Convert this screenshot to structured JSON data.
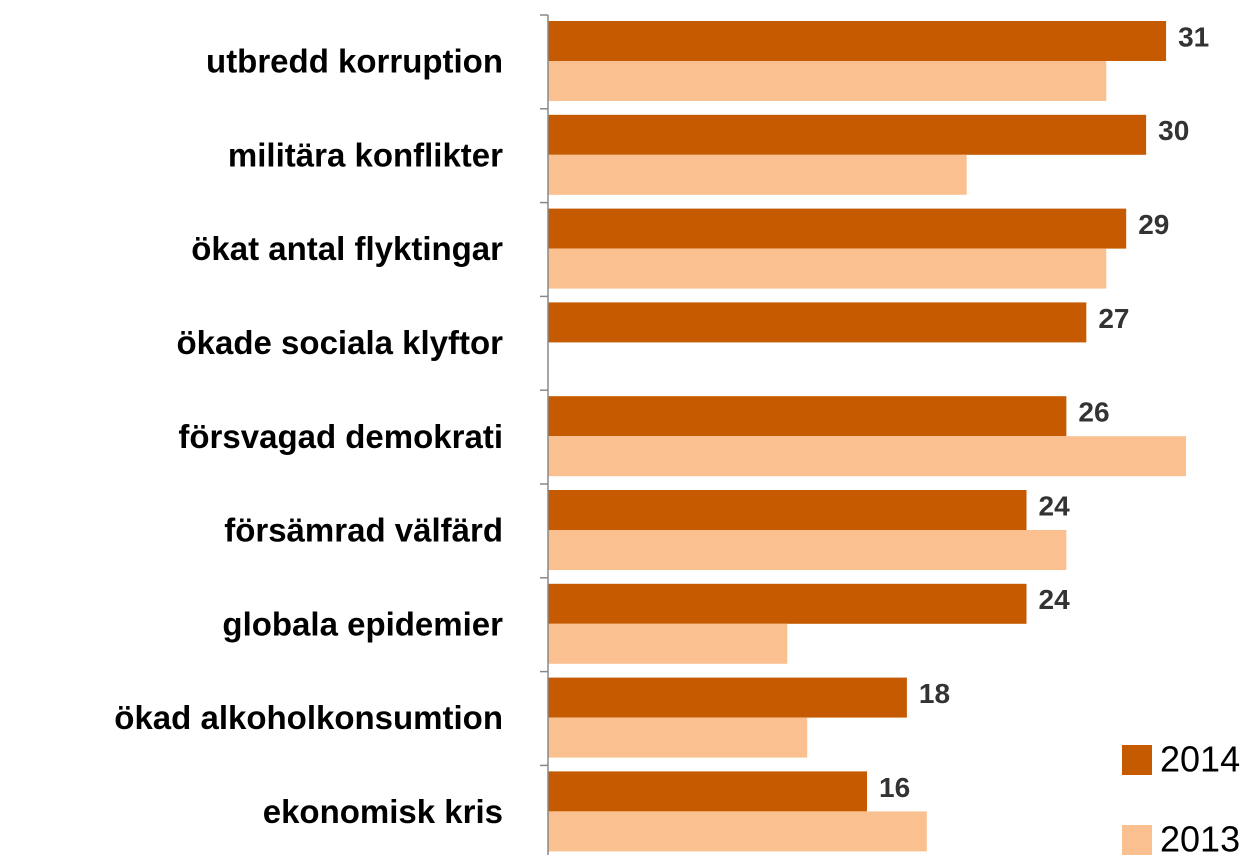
{
  "chart_data": {
    "type": "bar",
    "orientation": "horizontal",
    "categories": [
      "utbredd korruption",
      "militära konflikter",
      "ökat antal flyktingar",
      "ökade sociala klyftor",
      "försvagad demokrati",
      "försämrad välfärd",
      "globala epidemier",
      "ökad alkoholkonsumtion",
      "ekonomisk kris"
    ],
    "series": [
      {
        "name": "2014",
        "color": "#c55a00",
        "values": [
          31,
          30,
          29,
          27,
          26,
          24,
          24,
          18,
          16
        ],
        "show_labels": true
      },
      {
        "name": "2013",
        "color": "#fac090",
        "values": [
          28,
          21,
          28,
          null,
          32,
          26,
          12,
          13,
          19
        ],
        "show_labels": false
      }
    ],
    "xlim": [
      0,
      32
    ],
    "legend": "lower right"
  }
}
